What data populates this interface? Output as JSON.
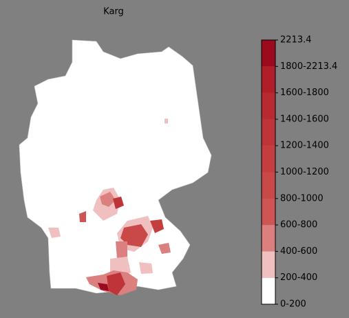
{
  "title": "Karg",
  "colorbar": {
    "labels": [
      "0-200",
      "200-400",
      "400-600",
      "600-800",
      "800-1000",
      "1000-1200",
      "1200-1400",
      "1400-1600",
      "1600-1800",
      "1800-2213.4",
      "2213.4"
    ],
    "colors": [
      "#ffffff",
      "#f0c0c0",
      "#db7f7f",
      "#cf5555",
      "#c94848",
      "#c43e40",
      "#bf3438",
      "#b82a31",
      "#b01e2a",
      "#9c0a20"
    ]
  }
}
